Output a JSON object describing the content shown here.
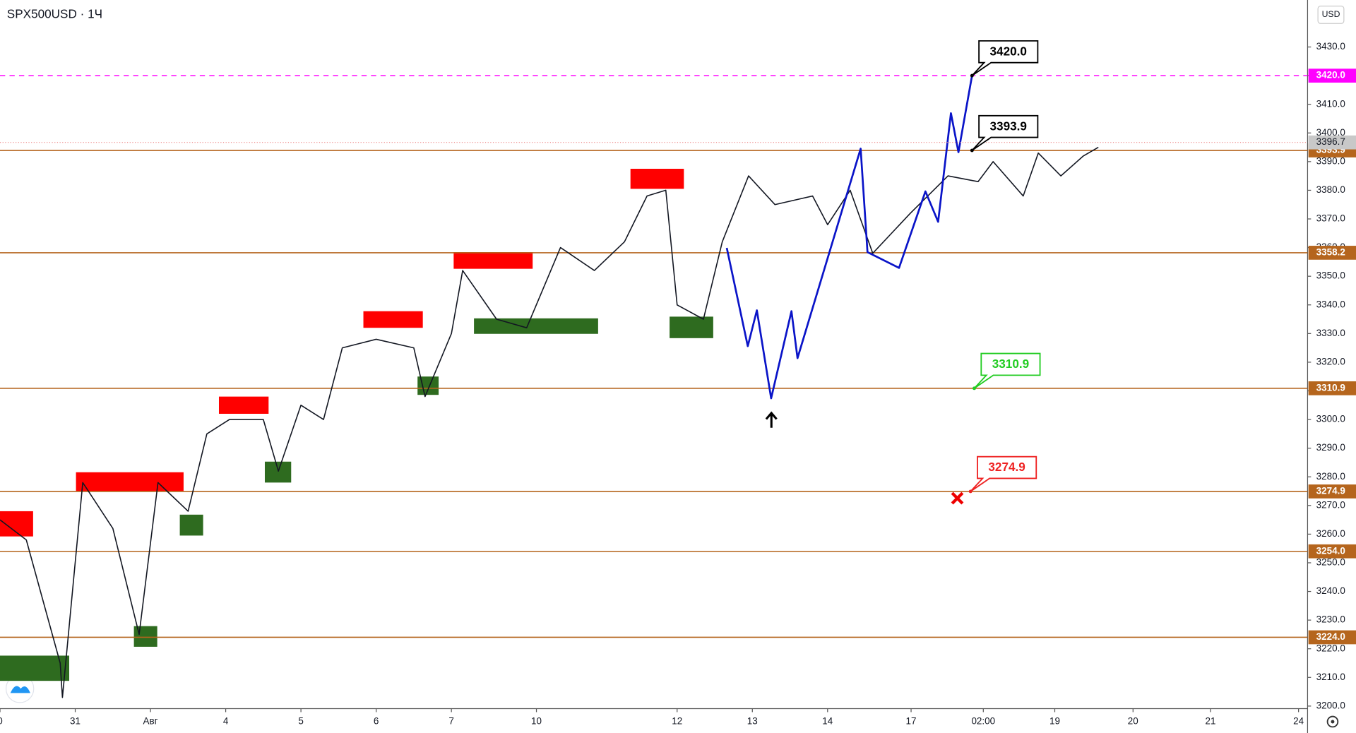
{
  "chart_data": {
    "type": "candlestick",
    "title": "SPX500USD · 1Ч",
    "currency": "USD",
    "xlim": [
      0,
      17.38
    ],
    "ylim": [
      3199.1,
      3446.4
    ],
    "grid": false,
    "xticks": [
      {
        "value": 0,
        "label": "0"
      },
      {
        "value": 1,
        "label": "31"
      },
      {
        "value": 2,
        "label": "Авг"
      },
      {
        "value": 3,
        "label": "4"
      },
      {
        "value": 4,
        "label": "5"
      },
      {
        "value": 5,
        "label": "6"
      },
      {
        "value": 6,
        "label": "7"
      },
      {
        "value": 7.13,
        "label": "10"
      },
      {
        "value": 9,
        "label": "12"
      },
      {
        "value": 10,
        "label": "13"
      },
      {
        "value": 11,
        "label": "14"
      },
      {
        "value": 12.11,
        "label": "17"
      },
      {
        "value": 13.07,
        "label": "02:00"
      },
      {
        "value": 14.02,
        "label": "19"
      },
      {
        "value": 15.06,
        "label": "20"
      },
      {
        "value": 16.09,
        "label": "21"
      },
      {
        "value": 17.26,
        "label": "24"
      }
    ],
    "yticks": [
      {
        "value": 3200,
        "label": "3200.0"
      },
      {
        "value": 3210,
        "label": "3210.0"
      },
      {
        "value": 3220,
        "label": "3220.0"
      },
      {
        "value": 3230,
        "label": "3230.0"
      },
      {
        "value": 3240,
        "label": "3240.0"
      },
      {
        "value": 3250,
        "label": "3250.0"
      },
      {
        "value": 3260,
        "label": "3260.0"
      },
      {
        "value": 3270,
        "label": "3270.0"
      },
      {
        "value": 3280,
        "label": "3280.0"
      },
      {
        "value": 3290,
        "label": "3290.0"
      },
      {
        "value": 3300,
        "label": "3300.0"
      },
      {
        "value": 3310,
        "label": "3310.0"
      },
      {
        "value": 3320,
        "label": "3320.0"
      },
      {
        "value": 3330,
        "label": "3330.0"
      },
      {
        "value": 3340,
        "label": "3340.0"
      },
      {
        "value": 3350,
        "label": "3350.0"
      },
      {
        "value": 3360,
        "label": "3360.0"
      },
      {
        "value": 3370,
        "label": "3370.0"
      },
      {
        "value": 3380,
        "label": "3380.0"
      },
      {
        "value": 3390,
        "label": "3390.0"
      },
      {
        "value": 3400,
        "label": "3400.0"
      },
      {
        "value": 3410,
        "label": "3410.0"
      },
      {
        "value": 3420,
        "label": "3420.0"
      },
      {
        "value": 3430,
        "label": "3430.0"
      }
    ],
    "price": {
      "color": "#131722",
      "x": [
        0,
        0.35,
        0.8,
        0.83,
        1.1,
        1.5,
        1.85,
        2.1,
        2.5,
        2.75,
        3.05,
        3.5,
        3.7,
        4.0,
        4.3,
        4.55,
        5.0,
        5.5,
        5.65,
        6.0,
        6.15,
        6.6,
        7.0,
        7.45,
        7.9,
        8.3,
        8.6,
        8.85,
        9.0,
        9.35,
        9.6,
        9.95,
        10.3,
        10.8,
        11.0,
        11.3,
        11.6,
        12.1,
        12.6,
        13.0,
        13.2,
        13.6,
        13.8,
        14.1,
        14.4,
        14.6
      ],
      "values": [
        3265,
        3258,
        3215,
        3203,
        3278,
        3262,
        3225,
        3278,
        3268,
        3295,
        3300,
        3300,
        3282,
        3305,
        3300,
        3325,
        3328,
        3325,
        3308,
        3330,
        3352,
        3335,
        3332,
        3360,
        3352,
        3362,
        3378,
        3380,
        3340,
        3335,
        3362,
        3385,
        3375,
        3378,
        3368,
        3380,
        3358,
        3372,
        3385,
        3383,
        3390,
        3378,
        3393,
        3385,
        3392,
        3395
      ]
    },
    "projection": {
      "color": "#0a14c8",
      "x": [
        9.66,
        9.94,
        10.06,
        10.25,
        10.52,
        10.6,
        11.44,
        11.53,
        11.95,
        12.3,
        12.47,
        12.64,
        12.74,
        12.92
      ],
      "values": [
        3359.9,
        3325.6,
        3338.1,
        3307.4,
        3337.8,
        3321.4,
        3394.5,
        3358.4,
        3352.9,
        3379.6,
        3369.0,
        3406.9,
        3393.3,
        3420.0
      ]
    },
    "zones": [
      {
        "x0": 0,
        "x1": 0.44,
        "y0": 3259.2,
        "y1": 3268.0,
        "color": "#ff0000"
      },
      {
        "x0": 1.01,
        "x1": 2.44,
        "y0": 3275.0,
        "y1": 3281.6,
        "color": "#ff0000"
      },
      {
        "x0": 2.91,
        "x1": 3.57,
        "y0": 3302.0,
        "y1": 3308.0,
        "color": "#ff0000"
      },
      {
        "x0": 4.83,
        "x1": 5.62,
        "y0": 3332.0,
        "y1": 3337.8,
        "color": "#ff0000"
      },
      {
        "x0": 6.03,
        "x1": 7.08,
        "y0": 3352.6,
        "y1": 3358.4,
        "color": "#ff0000"
      },
      {
        "x0": 8.38,
        "x1": 9.09,
        "y0": 3380.5,
        "y1": 3387.5,
        "color": "#ff0000"
      },
      {
        "x0": 0,
        "x1": 0.92,
        "y0": 3208.8,
        "y1": 3217.6,
        "color": "#2e6b1f"
      },
      {
        "x0": 1.78,
        "x1": 2.09,
        "y0": 3220.7,
        "y1": 3227.9,
        "color": "#2e6b1f"
      },
      {
        "x0": 2.39,
        "x1": 2.7,
        "y0": 3259.5,
        "y1": 3266.8,
        "color": "#2e6b1f"
      },
      {
        "x0": 3.52,
        "x1": 3.87,
        "y0": 3278.0,
        "y1": 3285.3,
        "color": "#2e6b1f"
      },
      {
        "x0": 5.55,
        "x1": 5.83,
        "y0": 3308.6,
        "y1": 3315.0,
        "color": "#2e6b1f"
      },
      {
        "x0": 6.3,
        "x1": 7.95,
        "y0": 3329.9,
        "y1": 3335.3,
        "color": "#2e6b1f"
      },
      {
        "x0": 8.9,
        "x1": 9.48,
        "y0": 3328.4,
        "y1": 3335.9,
        "color": "#2e6b1f"
      }
    ],
    "levels": [
      {
        "value": 3420.0,
        "label": "3420.0",
        "color": "#ff00ff",
        "dashed": true
      },
      {
        "value": 3393.9,
        "label": "3393.9",
        "color": "#b5651d",
        "dashed": false
      },
      {
        "value": 3358.2,
        "label": "3358.2",
        "color": "#b5651d",
        "dashed": false
      },
      {
        "value": 3310.9,
        "label": "3310.9",
        "color": "#b5651d",
        "dashed": false
      },
      {
        "value": 3274.9,
        "label": "3274.9",
        "color": "#b5651d",
        "dashed": false
      },
      {
        "value": 3254.0,
        "label": "3254.0",
        "color": "#b5651d",
        "dashed": false
      },
      {
        "value": 3224.0,
        "label": "3224.0",
        "color": "#b5651d",
        "dashed": false
      }
    ],
    "last_price": {
      "value": 3396.7,
      "label": "3396.7"
    },
    "callouts": [
      {
        "x": 12.92,
        "value": 3420.0,
        "label": "3420.0",
        "color": "#000000"
      },
      {
        "x": 12.92,
        "value": 3393.9,
        "label": "3393.9",
        "color": "#000000"
      },
      {
        "x": 12.95,
        "value": 3310.9,
        "label": "3310.9",
        "color": "#22cc22"
      },
      {
        "x": 12.9,
        "value": 3274.9,
        "label": "3274.9",
        "color": "#ee2222"
      }
    ]
  }
}
